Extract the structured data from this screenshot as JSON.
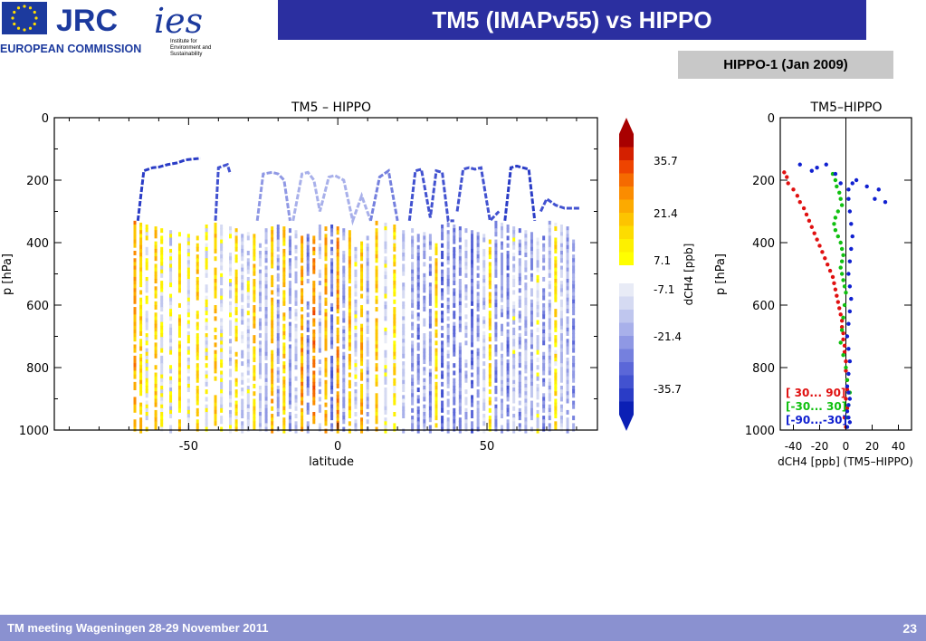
{
  "header": {
    "title": "TM5 (IMAPv55) vs HIPPO",
    "badge": "HIPPO-1 (Jan 2009)",
    "logo_jrc": "JRC",
    "logo_commission": "EUROPEAN COMMISSION",
    "logo_ies": "ies",
    "logo_ies_sub1": "Institute for",
    "logo_ies_sub2": "Environment and",
    "logo_ies_sub3": "Sustainability"
  },
  "footer": {
    "text": "TM meeting Wageningen 28-29 November 2011",
    "page": "23"
  },
  "chart_data": [
    {
      "type": "heatmap",
      "title": "TM5 – HIPPO",
      "xlabel": "latitude",
      "ylabel": "p [hPa]",
      "xlim": [
        -95,
        87
      ],
      "ylim": [
        1000,
        0
      ],
      "x_ticks": [
        -50,
        0,
        50
      ],
      "y_ticks": [
        0,
        200,
        400,
        600,
        800,
        1000
      ],
      "colorbar": {
        "label": "dCH4 [ppb]",
        "ticks": [
          35.7,
          21.4,
          7.1,
          -7.1,
          -21.4,
          -35.7
        ],
        "colors_positive": [
          "#a80000",
          "#d42000",
          "#ee4400",
          "#f56a00",
          "#fb8c00",
          "#fcaa00",
          "#fdc400",
          "#fddc00",
          "#fdf000",
          "#ffff00"
        ],
        "colors_negative": [
          "#e8ebf6",
          "#d5daf2",
          "#bfc6ee",
          "#a8b0ea",
          "#8f98e4",
          "#7580de",
          "#5b67d8",
          "#4252d0",
          "#2a3cc6",
          "#0b1fb5"
        ]
      },
      "flight_track_segments": [
        {
          "lat": [
            -67,
            -65,
            -62,
            -60,
            -57,
            -54,
            -51,
            -48,
            -46
          ],
          "p": [
            330,
            170,
            160,
            158,
            150,
            145,
            135,
            132,
            130
          ],
          "value": -45
        },
        {
          "lat": [
            -41,
            -40,
            -37,
            -36
          ],
          "p": [
            330,
            160,
            150,
            180
          ],
          "value": -40
        },
        {
          "lat": [
            -27,
            -25,
            -22,
            -20,
            -18,
            -16
          ],
          "p": [
            330,
            180,
            175,
            180,
            200,
            330
          ],
          "value": -20
        },
        {
          "lat": [
            -15,
            -12,
            -10,
            -8,
            -6,
            -3,
            -1,
            2,
            5,
            8,
            11
          ],
          "p": [
            330,
            180,
            175,
            200,
            300,
            190,
            185,
            200,
            330,
            250,
            330
          ],
          "value": -15
        },
        {
          "lat": [
            11,
            14,
            17,
            20
          ],
          "p": [
            330,
            190,
            170,
            330
          ],
          "value": -25
        },
        {
          "lat": [
            24,
            26,
            28,
            31,
            33,
            35,
            37,
            39
          ],
          "p": [
            330,
            170,
            165,
            320,
            170,
            175,
            330,
            330
          ],
          "value": -40
        },
        {
          "lat": [
            40,
            42,
            44,
            46,
            48,
            51,
            54
          ],
          "p": [
            300,
            165,
            160,
            165,
            160,
            330,
            300
          ],
          "value": -40
        },
        {
          "lat": [
            56,
            58,
            60,
            62,
            64,
            66
          ],
          "p": [
            330,
            160,
            155,
            160,
            165,
            330
          ],
          "value": -45
        },
        {
          "lat": [
            68,
            70,
            73,
            76,
            79,
            81
          ],
          "p": [
            300,
            260,
            280,
            290,
            290,
            290
          ],
          "value": -40
        }
      ],
      "profile_columns": [
        {
          "lat": -68,
          "value": 20
        },
        {
          "lat": -66,
          "value": 10
        },
        {
          "lat": -64,
          "value": -3
        },
        {
          "lat": -61,
          "value": 12
        },
        {
          "lat": -59,
          "value": -4
        },
        {
          "lat": -56,
          "value": -8
        },
        {
          "lat": -53,
          "value": 8
        },
        {
          "lat": -50,
          "value": -5
        },
        {
          "lat": -47,
          "value": 12
        },
        {
          "lat": -44,
          "value": -3
        },
        {
          "lat": -41,
          "value": 14
        },
        {
          "lat": -39,
          "value": -6
        },
        {
          "lat": -36,
          "value": -10
        },
        {
          "lat": -34,
          "value": 6
        },
        {
          "lat": -32,
          "value": -12
        },
        {
          "lat": -30,
          "value": -8
        },
        {
          "lat": -28,
          "value": 10
        },
        {
          "lat": -26,
          "value": -14
        },
        {
          "lat": -24,
          "value": -18
        },
        {
          "lat": -22,
          "value": 16
        },
        {
          "lat": -20,
          "value": -20
        },
        {
          "lat": -18,
          "value": 12
        },
        {
          "lat": -16,
          "value": -24
        },
        {
          "lat": -14,
          "value": -12
        },
        {
          "lat": -12,
          "value": 20
        },
        {
          "lat": -10,
          "value": -28
        },
        {
          "lat": -8,
          "value": 25
        },
        {
          "lat": -6,
          "value": -15
        },
        {
          "lat": -4,
          "value": 18
        },
        {
          "lat": -2,
          "value": -30
        },
        {
          "lat": 0,
          "value": 22
        },
        {
          "lat": 2,
          "value": -20
        },
        {
          "lat": 4,
          "value": 14
        },
        {
          "lat": 6,
          "value": -10
        },
        {
          "lat": 8,
          "value": 16
        },
        {
          "lat": 10,
          "value": -18
        },
        {
          "lat": 13,
          "value": 12
        },
        {
          "lat": 16,
          "value": -8
        },
        {
          "lat": 19,
          "value": 6
        },
        {
          "lat": 22,
          "value": -12
        },
        {
          "lat": 25,
          "value": -22
        },
        {
          "lat": 27,
          "value": -30
        },
        {
          "lat": 29,
          "value": -18
        },
        {
          "lat": 31,
          "value": -26
        },
        {
          "lat": 33,
          "value": 10
        },
        {
          "lat": 35,
          "value": -34
        },
        {
          "lat": 37,
          "value": -20
        },
        {
          "lat": 39,
          "value": -28
        },
        {
          "lat": 41,
          "value": -24
        },
        {
          "lat": 43,
          "value": -14
        },
        {
          "lat": 45,
          "value": -32
        },
        {
          "lat": 47,
          "value": -22
        },
        {
          "lat": 49,
          "value": -12
        },
        {
          "lat": 51,
          "value": 8
        },
        {
          "lat": 53,
          "value": -26
        },
        {
          "lat": 55,
          "value": -18
        },
        {
          "lat": 57,
          "value": -30
        },
        {
          "lat": 59,
          "value": -10
        },
        {
          "lat": 61,
          "value": -24
        },
        {
          "lat": 63,
          "value": -14
        },
        {
          "lat": 65,
          "value": -22
        },
        {
          "lat": 67,
          "value": -8
        },
        {
          "lat": 69,
          "value": -28
        },
        {
          "lat": 71,
          "value": -16
        },
        {
          "lat": 73,
          "value": 6
        },
        {
          "lat": 75,
          "value": -12
        },
        {
          "lat": 77,
          "value": -20
        },
        {
          "lat": 79,
          "value": -26
        }
      ]
    },
    {
      "type": "scatter",
      "title": "TM5–HIPPO",
      "xlabel": "dCH4 [ppb] (TM5–HIPPO)",
      "ylabel": "p [hPa]",
      "xlim": [
        -50,
        50
      ],
      "ylim": [
        1000,
        0
      ],
      "x_ticks": [
        -40,
        -20,
        0,
        20,
        40
      ],
      "y_ticks": [
        0,
        200,
        400,
        600,
        800,
        1000
      ],
      "series": [
        {
          "name": "[ 30... 90]",
          "color": "#e01010",
          "x": [
            -47,
            -45,
            -44,
            -40,
            -37,
            -35,
            -32,
            -30,
            -28,
            -26,
            -24,
            -22,
            -20,
            -18,
            -16,
            -14,
            -12,
            -10,
            -9,
            -8,
            -7,
            -6,
            -5,
            -4,
            -3,
            -3,
            -2,
            -2,
            -1,
            -1,
            0,
            0,
            1,
            1,
            0,
            1,
            -1,
            0
          ],
          "y": [
            175,
            190,
            210,
            230,
            250,
            270,
            290,
            310,
            330,
            350,
            370,
            390,
            410,
            430,
            450,
            470,
            490,
            510,
            530,
            550,
            570,
            590,
            610,
            630,
            650,
            670,
            690,
            710,
            730,
            750,
            780,
            810,
            840,
            870,
            900,
            930,
            960,
            990
          ]
        },
        {
          "name": "[-30... 30]",
          "color": "#10c010",
          "x": [
            -10,
            -8,
            -7,
            -5,
            -4,
            -3,
            -6,
            -8,
            -9,
            -8,
            -6,
            -4,
            -3,
            -2,
            -3,
            -4,
            -3,
            -2,
            -1,
            0,
            -1,
            -2,
            -3,
            -4,
            -2,
            0,
            1,
            3,
            2,
            1
          ],
          "y": [
            180,
            200,
            220,
            240,
            260,
            280,
            300,
            320,
            340,
            360,
            380,
            400,
            420,
            440,
            460,
            480,
            500,
            520,
            540,
            560,
            600,
            640,
            680,
            720,
            760,
            800,
            840,
            880,
            920,
            960
          ]
        },
        {
          "name": "[-90...-30]",
          "color": "#1020d0",
          "x": [
            -35,
            -26,
            -22,
            -15,
            -8,
            -4,
            2,
            5,
            8,
            16,
            22,
            25,
            30,
            2,
            3,
            4,
            5,
            4,
            3,
            2,
            3,
            4,
            3,
            2,
            1,
            2,
            3,
            2,
            1,
            2,
            3,
            2,
            1,
            2,
            3,
            1
          ],
          "y": [
            150,
            170,
            160,
            150,
            180,
            210,
            230,
            210,
            200,
            220,
            260,
            230,
            270,
            260,
            300,
            340,
            380,
            420,
            460,
            500,
            540,
            580,
            620,
            660,
            700,
            740,
            780,
            820,
            860,
            880,
            900,
            920,
            940,
            960,
            975,
            990
          ]
        }
      ]
    }
  ]
}
